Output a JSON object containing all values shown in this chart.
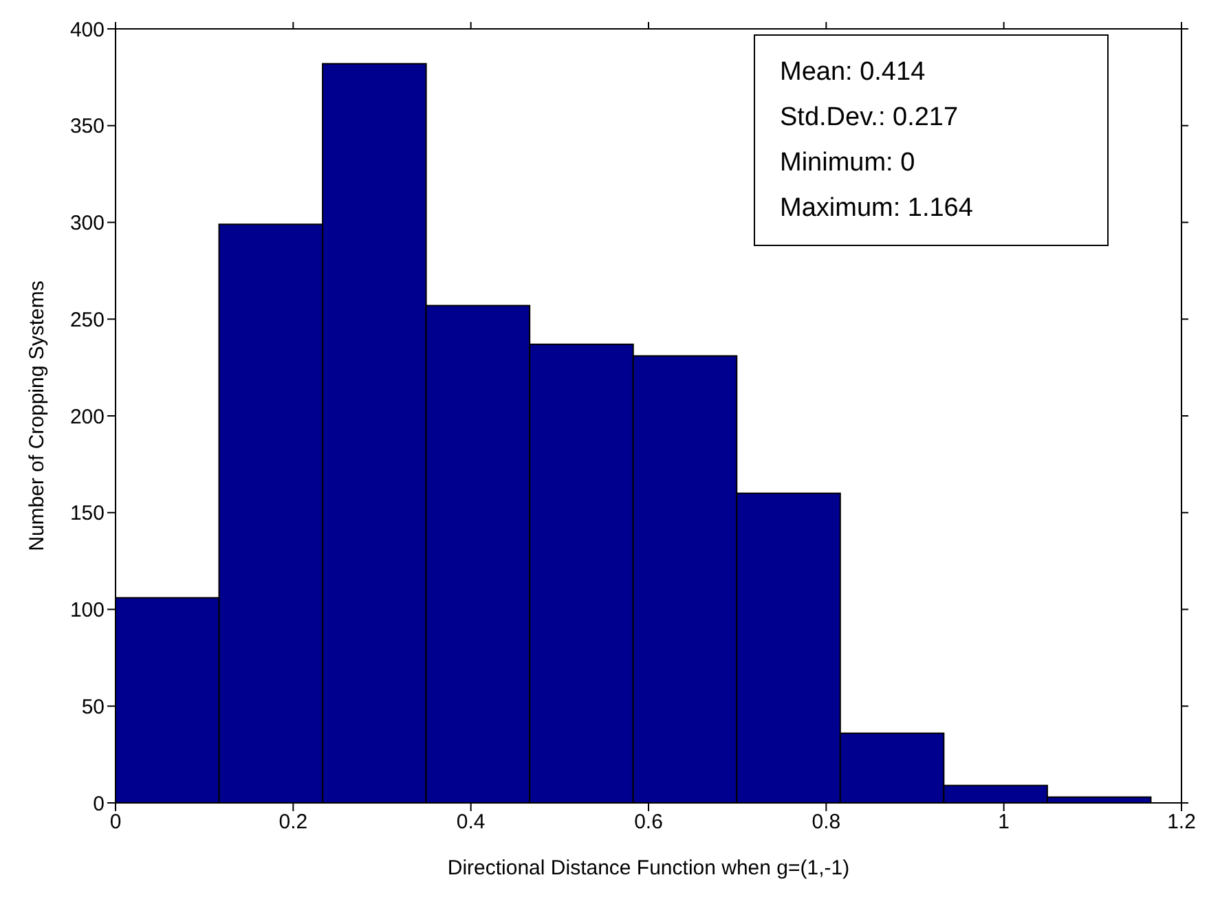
{
  "chart_data": {
    "type": "histogram",
    "xlabel": "Directional Distance Function when g=(1,-1)",
    "ylabel": "Number of Cropping Systems",
    "bins": [
      0,
      0.1164,
      0.2328,
      0.3492,
      0.4656,
      0.582,
      0.6984,
      0.8148,
      0.9312,
      1.0476,
      1.164
    ],
    "values": [
      106,
      299,
      382,
      257,
      237,
      231,
      160,
      36,
      9,
      3
    ],
    "color": "#00008f",
    "xlim": [
      0,
      1.2
    ],
    "xticks": [
      0,
      0.2,
      0.4,
      0.6,
      0.8,
      1,
      1.2
    ],
    "ylim": [
      0,
      400
    ],
    "yticks": [
      0,
      50,
      100,
      150,
      200,
      250,
      300,
      350,
      400
    ],
    "annotations": [
      "Mean: 0.414",
      "Std.Dev.: 0.217",
      "Minimum: 0",
      "Maximum: 1.164"
    ]
  }
}
